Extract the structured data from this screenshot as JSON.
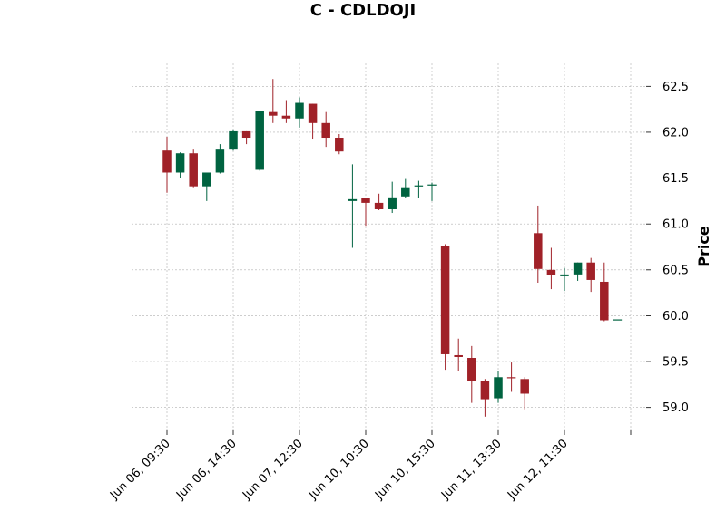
{
  "chart_data": {
    "type": "candlestick",
    "title": "C - CDLDOJI",
    "ylabel": "Price",
    "ylim": [
      58.75,
      62.75
    ],
    "yticks": [
      59.0,
      59.5,
      60.0,
      60.5,
      61.0,
      61.5,
      62.0,
      62.5
    ],
    "ytick_labels": [
      "59.0",
      "59.5",
      "60.0",
      "60.5",
      "61.0",
      "61.5",
      "62.0",
      "62.5"
    ],
    "xtick_labels": [
      "Jun 06, 09:30",
      "Jun 06, 14:30",
      "Jun 07, 12:30",
      "Jun 10, 10:30",
      "Jun 10, 15:30",
      "Jun 11, 13:30",
      "Jun 12, 11:30",
      ""
    ],
    "xtick_indices": [
      0,
      5,
      10,
      15,
      20,
      25,
      30,
      35
    ],
    "grid": true,
    "up_color": "#006340",
    "down_color": "#a02128",
    "candles": [
      {
        "open": 61.8,
        "high": 61.95,
        "low": 61.34,
        "close": 61.56
      },
      {
        "open": 61.56,
        "high": 61.78,
        "low": 61.5,
        "close": 61.77
      },
      {
        "open": 61.77,
        "high": 61.82,
        "low": 61.4,
        "close": 61.41
      },
      {
        "open": 61.41,
        "high": 61.56,
        "low": 61.25,
        "close": 61.56
      },
      {
        "open": 61.56,
        "high": 61.87,
        "low": 61.55,
        "close": 61.82
      },
      {
        "open": 61.82,
        "high": 62.03,
        "low": 61.8,
        "close": 62.01
      },
      {
        "open": 62.01,
        "high": 62.01,
        "low": 61.87,
        "close": 61.94
      },
      {
        "open": 61.59,
        "high": 62.23,
        "low": 61.58,
        "close": 62.23
      },
      {
        "open": 62.22,
        "high": 62.58,
        "low": 62.1,
        "close": 62.18
      },
      {
        "open": 62.18,
        "high": 62.35,
        "low": 62.1,
        "close": 62.15
      },
      {
        "open": 62.15,
        "high": 62.38,
        "low": 62.05,
        "close": 62.32
      },
      {
        "open": 62.31,
        "high": 62.31,
        "low": 61.93,
        "close": 62.1
      },
      {
        "open": 62.1,
        "high": 62.22,
        "low": 61.84,
        "close": 61.94
      },
      {
        "open": 61.94,
        "high": 61.98,
        "low": 61.76,
        "close": 61.79
      },
      {
        "open": 61.25,
        "high": 61.65,
        "low": 60.74,
        "close": 61.27
      },
      {
        "open": 61.28,
        "high": 61.28,
        "low": 60.98,
        "close": 61.23
      },
      {
        "open": 61.23,
        "high": 61.33,
        "low": 61.15,
        "close": 61.16
      },
      {
        "open": 61.16,
        "high": 61.46,
        "low": 61.12,
        "close": 61.29
      },
      {
        "open": 61.3,
        "high": 61.49,
        "low": 61.28,
        "close": 61.4
      },
      {
        "open": 61.41,
        "high": 61.47,
        "low": 61.28,
        "close": 61.42
      },
      {
        "open": 61.42,
        "high": 61.45,
        "low": 61.25,
        "close": 61.43
      },
      {
        "open": 60.76,
        "high": 60.78,
        "low": 59.41,
        "close": 59.58
      },
      {
        "open": 59.57,
        "high": 59.75,
        "low": 59.4,
        "close": 59.55
      },
      {
        "open": 59.54,
        "high": 59.67,
        "low": 59.05,
        "close": 59.29
      },
      {
        "open": 59.29,
        "high": 59.31,
        "low": 58.9,
        "close": 59.09
      },
      {
        "open": 59.1,
        "high": 59.4,
        "low": 59.05,
        "close": 59.33
      },
      {
        "open": 59.33,
        "high": 59.49,
        "low": 59.17,
        "close": 59.32
      },
      {
        "open": 59.31,
        "high": 59.33,
        "low": 58.98,
        "close": 59.15
      },
      {
        "open": 60.9,
        "high": 61.2,
        "low": 60.36,
        "close": 60.51
      },
      {
        "open": 60.5,
        "high": 60.74,
        "low": 60.29,
        "close": 60.44
      },
      {
        "open": 60.43,
        "high": 60.52,
        "low": 60.27,
        "close": 60.45
      },
      {
        "open": 60.45,
        "high": 60.58,
        "low": 60.38,
        "close": 60.58
      },
      {
        "open": 60.58,
        "high": 60.63,
        "low": 60.26,
        "close": 60.39
      },
      {
        "open": 60.37,
        "high": 60.58,
        "low": 59.94,
        "close": 59.95
      },
      {
        "open": 59.96,
        "high": 59.96,
        "low": 59.96,
        "close": 59.96
      }
    ]
  }
}
